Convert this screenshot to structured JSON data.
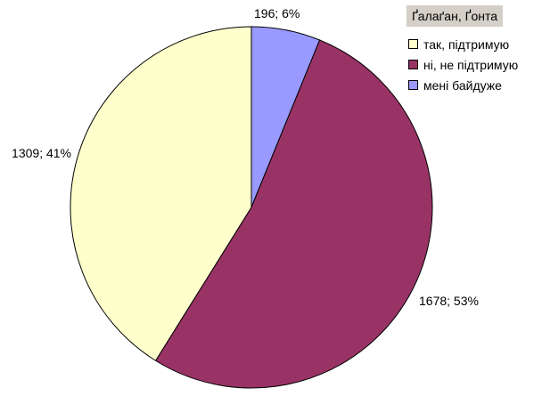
{
  "chart_data": {
    "type": "pie",
    "legend_title": "Ґалаґан, Ґонта",
    "legend_position": "top-right",
    "slices": [
      {
        "label": "мені байдуже",
        "value": 196,
        "percent": 6,
        "data_label": "196; 6%",
        "color": "#9999ff"
      },
      {
        "label": "ні, не підтримую",
        "value": 1678,
        "percent": 53,
        "data_label": "1678; 53%",
        "color": "#993366"
      },
      {
        "label": "так, підтримую",
        "value": 1309,
        "percent": 41,
        "data_label": "1309; 41%",
        "color": "#ffffcc"
      }
    ],
    "legend_order": [
      "так, підтримую",
      "ні, не підтримую",
      "мені байдуже"
    ]
  }
}
